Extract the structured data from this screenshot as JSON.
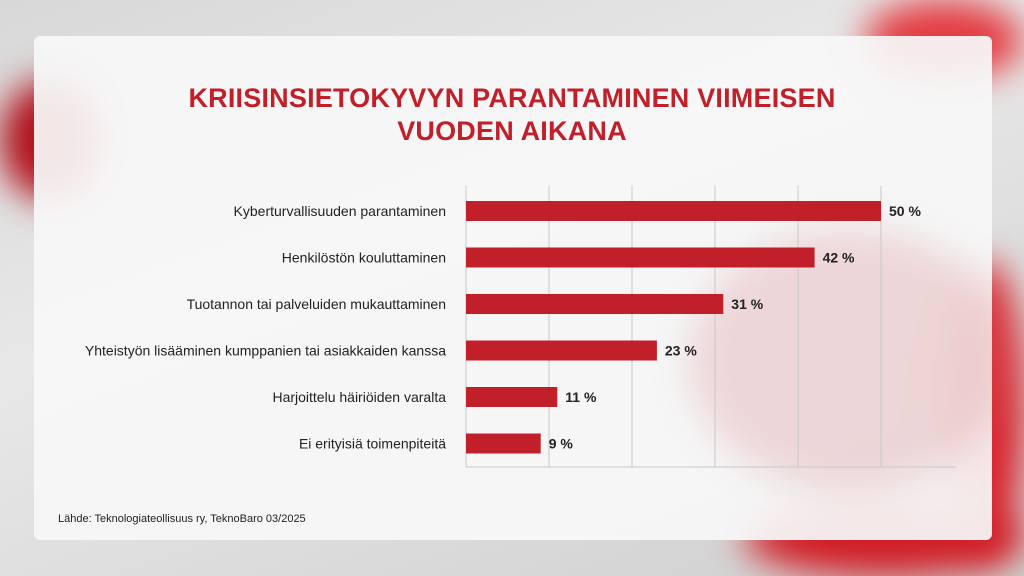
{
  "title_lines": [
    "KRIISINSIETOKYVYN PARANTAMINEN VIIMEISEN",
    "VUODEN AIKANA"
  ],
  "source": "Lähde: Teknologiateollisuus ry, TeknoBaro 03/2025",
  "colors": {
    "bar": "#c1202a",
    "title": "#c1202a"
  },
  "chart_data": {
    "type": "bar",
    "orientation": "horizontal",
    "title": "KRIISINSIETOKYVYN PARANTAMINEN VIIMEISEN VUODEN AIKANA",
    "categories": [
      "Kyberturvallisuuden parantaminen",
      "Henkilöstön kouluttaminen",
      "Tuotannon tai palveluiden mukauttaminen",
      "Yhteistyön lisääminen kumppanien tai asiakkaiden kanssa",
      "Harjoittelu häiriöiden varalta",
      "Ei erityisiä toimenpiteitä"
    ],
    "values": [
      50,
      42,
      31,
      23,
      11,
      9
    ],
    "value_labels": [
      "50 %",
      "42 %",
      "31 %",
      "23 %",
      "11 %",
      "9 %"
    ],
    "unit": "%",
    "xlim": [
      0,
      60
    ],
    "gridlines": [
      0,
      10,
      20,
      30,
      40,
      50
    ],
    "grid": true,
    "xlabel": "",
    "ylabel": ""
  }
}
